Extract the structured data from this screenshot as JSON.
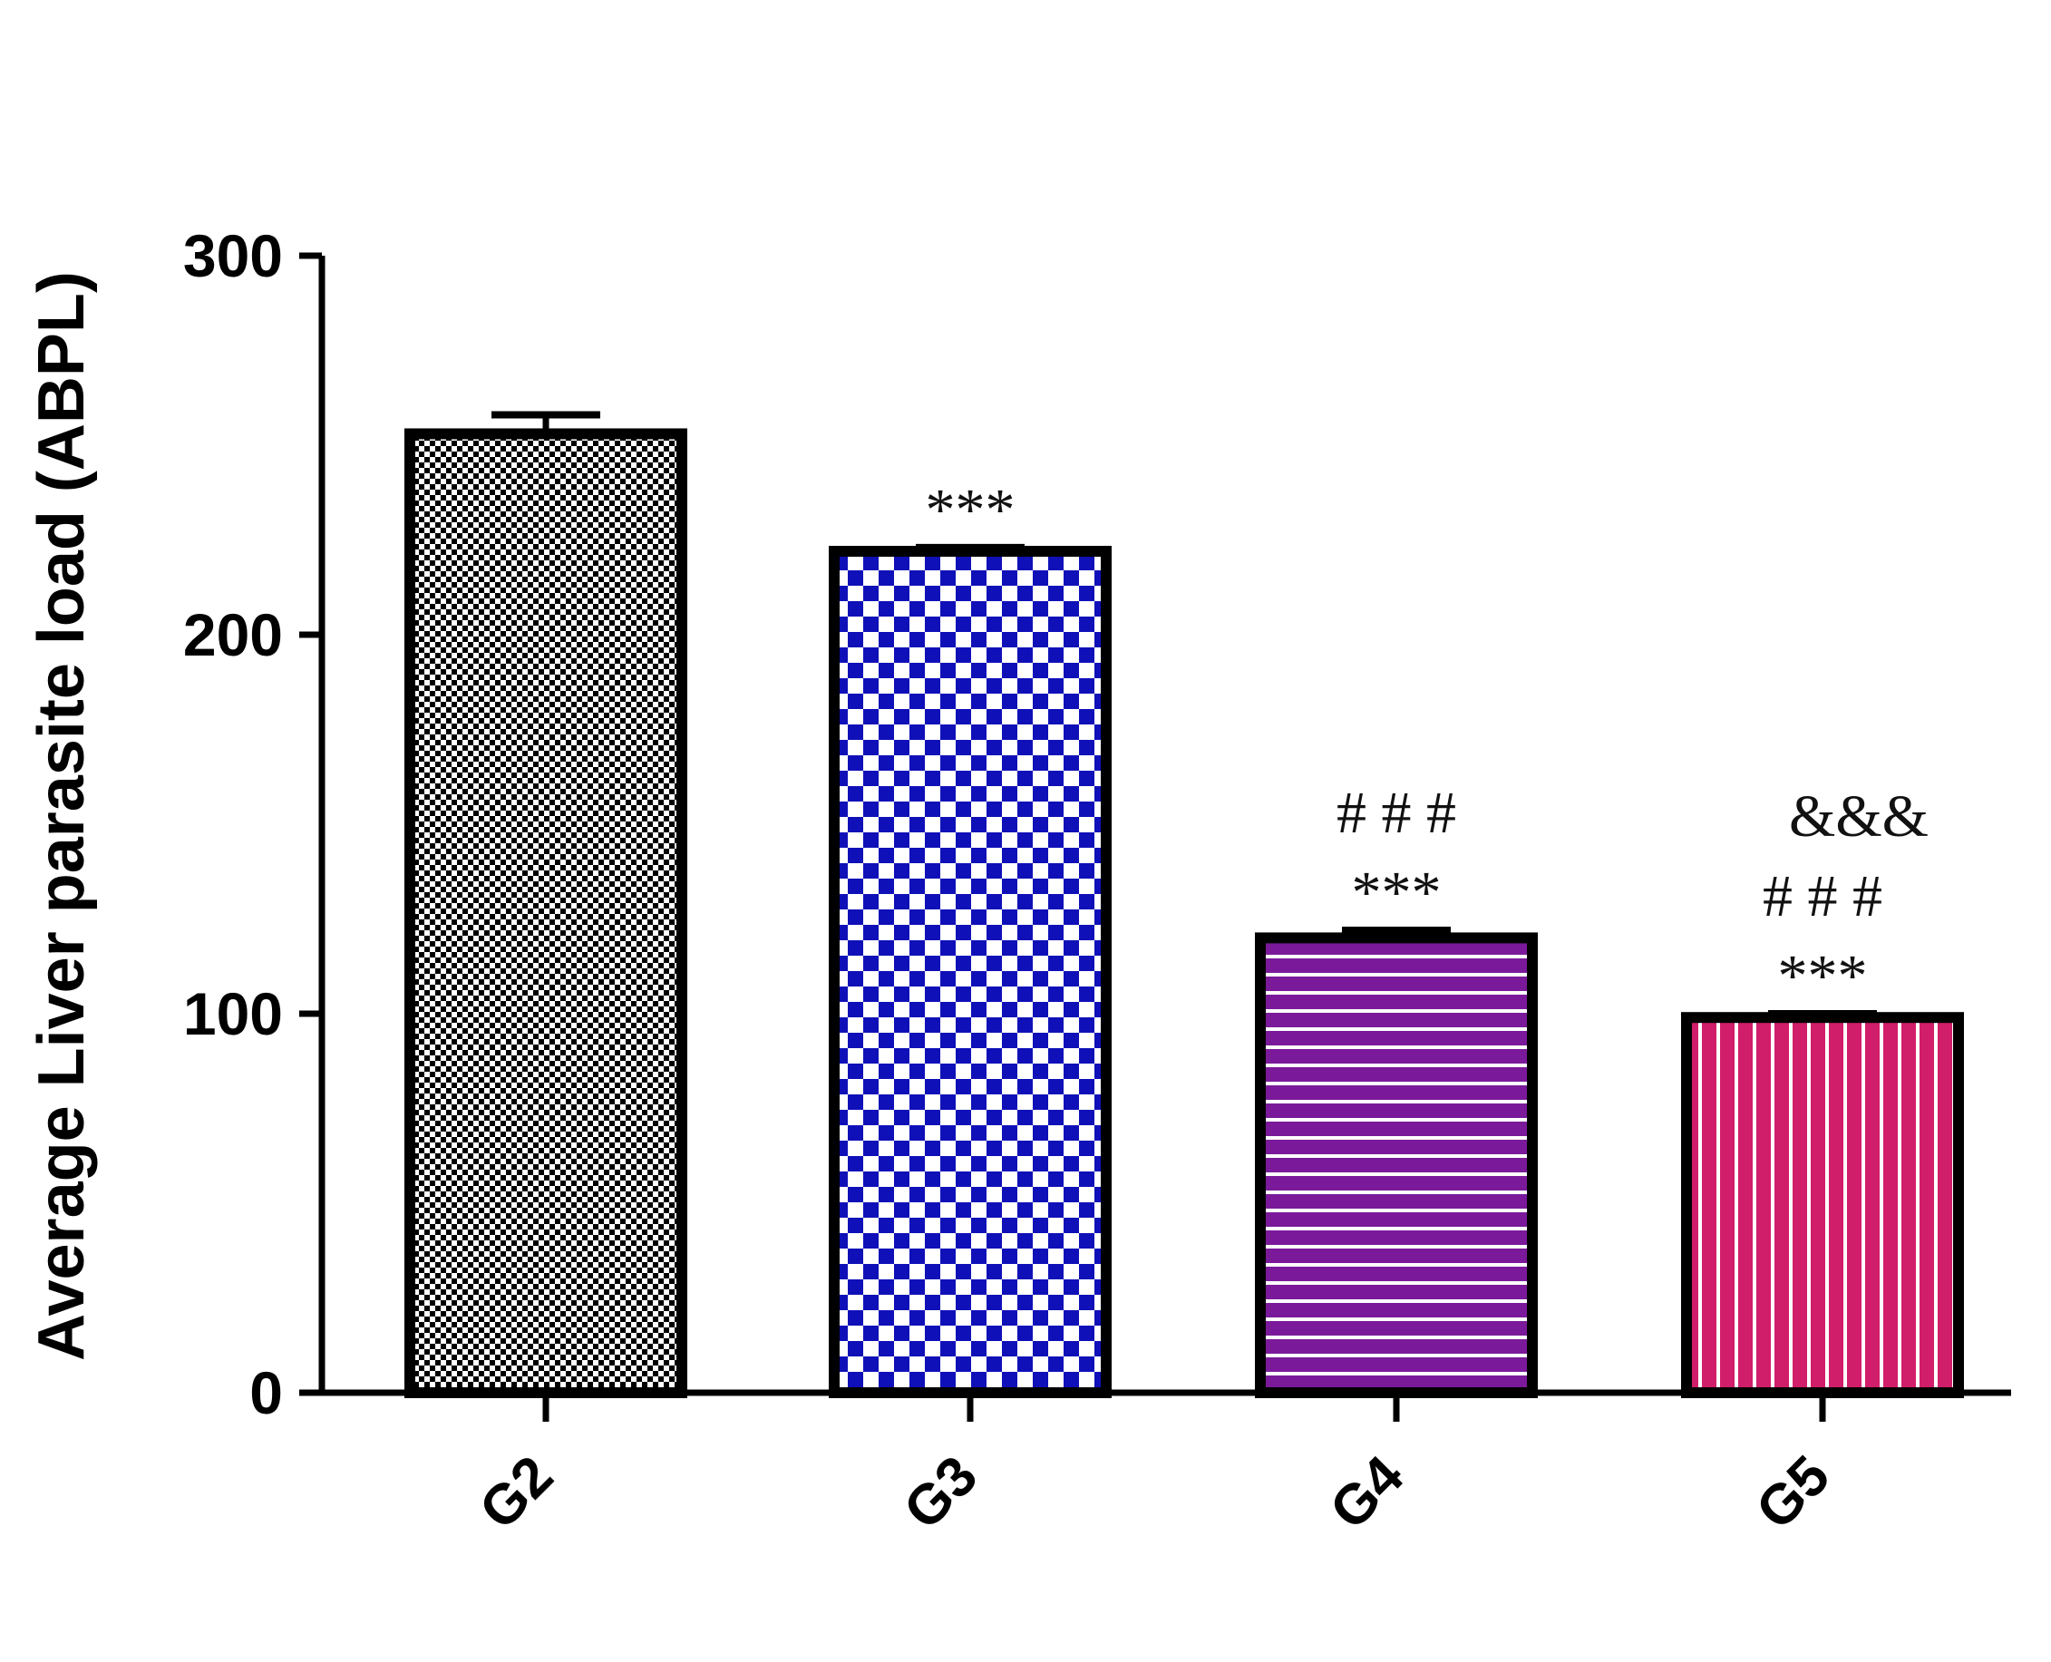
{
  "chart_data": {
    "type": "bar",
    "categories": [
      "G2",
      "G3",
      "G4",
      "G5"
    ],
    "values": [
      253,
      222,
      120,
      99
    ],
    "errors": [
      5,
      1,
      2,
      1
    ],
    "ylabel": "Average Liver parasite load (ABPL)",
    "xlabel": "",
    "ylim": [
      0,
      300
    ],
    "yticks": [
      0,
      100,
      200,
      300
    ],
    "ytick_labels": [
      "0",
      "100",
      "200",
      "300"
    ],
    "grid": false,
    "annotations": [
      [],
      [
        "***"
      ],
      [
        "***",
        "# # #"
      ],
      [
        "***",
        "# # #",
        "&&&"
      ]
    ],
    "colors": {
      "G2": "#000000",
      "G3": "#1010b8",
      "G4": "#7a1a9a",
      "G5": "#d01e6a",
      "outline": "#000000"
    },
    "patterns": [
      "fine-checker",
      "checker",
      "horizontal-stripes",
      "vertical-stripes"
    ]
  }
}
